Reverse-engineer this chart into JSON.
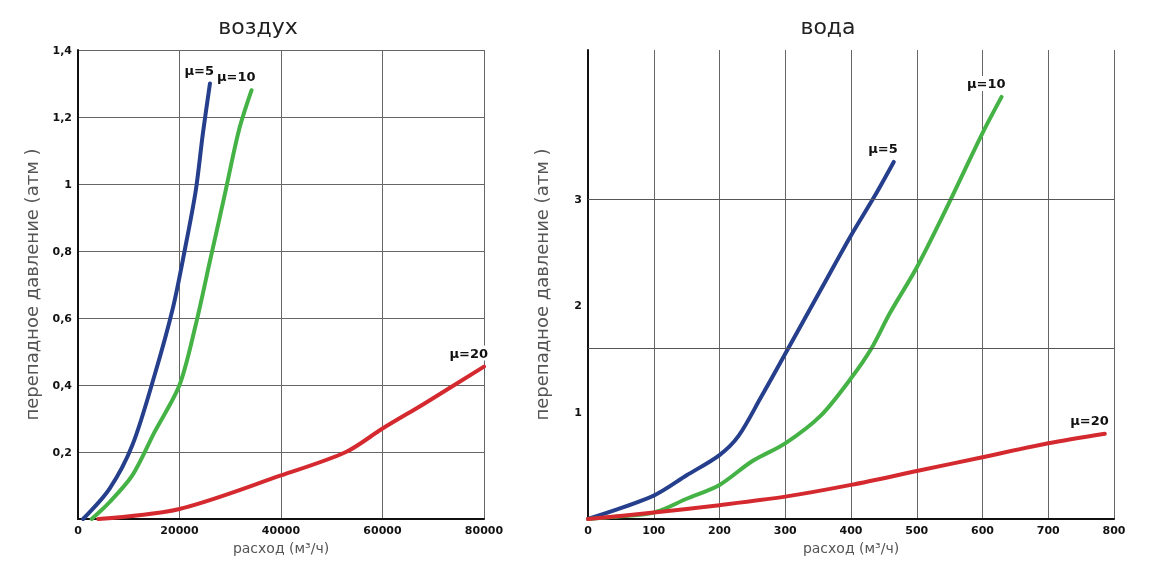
{
  "chart_data": [
    {
      "type": "line",
      "title": "воздух",
      "xlabel": "расход (м³/ч)",
      "ylabel": "перепадное давление (атм )",
      "xlim": [
        0,
        80000
      ],
      "xticks": [
        0,
        20000,
        40000,
        60000,
        80000
      ],
      "ylim": [
        0,
        1.4
      ],
      "yticks": [
        {
          "value": 0,
          "label": null
        },
        {
          "value": 0.2,
          "label": "0,2"
        },
        {
          "value": 0.4,
          "label": "0,4"
        },
        {
          "value": 0.6,
          "label": "0,6"
        },
        {
          "value": 0.8,
          "label": "0,8"
        },
        1,
        {
          "value": 1.2,
          "label": "1,2"
        },
        {
          "value": 1.4,
          "label": "1,4"
        }
      ],
      "grid": true,
      "legend": false,
      "series": [
        {
          "name": "μ=5",
          "color": "#263f8c",
          "x": [
            1000,
            6200,
            10700,
            15100,
            18700,
            21000,
            23200,
            24600,
            26000
          ],
          "values": [
            0,
            0.09,
            0.22,
            0.43,
            0.63,
            0.8,
            0.98,
            1.15,
            1.3
          ]
        },
        {
          "name": "μ=10",
          "color": "#45b245",
          "x": [
            2700,
            6200,
            10700,
            15100,
            20000,
            23200,
            26000,
            28800,
            31700,
            34200
          ],
          "values": [
            0,
            0.05,
            0.13,
            0.26,
            0.4,
            0.58,
            0.77,
            0.96,
            1.16,
            1.28
          ]
        },
        {
          "name": "μ=20",
          "color": "#d42a2f",
          "x": [
            4000,
            20000,
            40000,
            52800,
            60000,
            68300,
            80000
          ],
          "values": [
            0,
            0.03,
            0.13,
            0.2,
            0.27,
            0.345,
            0.455
          ]
        }
      ]
    },
    {
      "type": "line",
      "title": "вода",
      "xlabel": "расход (м³/ч)",
      "ylabel": "перепадное давление (атм )",
      "xlim": [
        0,
        800
      ],
      "xticks": [
        0,
        100,
        200,
        300,
        400,
        500,
        600,
        700,
        800
      ],
      "ylim": [
        0,
        4.4
      ],
      "yticks": [
        {
          "value": 0,
          "label": null
        },
        1,
        2,
        3
      ],
      "grid": "x",
      "legend": false,
      "ref_lines": [
        {
          "axis": "y",
          "value": 3,
          "color": "#555555"
        },
        {
          "axis": "y",
          "value": 1.6,
          "color": "#555555"
        }
      ],
      "series": [
        {
          "name": "μ=5",
          "color": "#263f8c",
          "x": [
            0,
            100,
            150,
            200,
            229,
            262,
            300,
            354,
            400,
            436,
            465
          ],
          "values": [
            0,
            0.22,
            0.41,
            0.6,
            0.78,
            1.13,
            1.55,
            2.15,
            2.66,
            3.03,
            3.35
          ]
        },
        {
          "name": "μ=10",
          "color": "#45b245",
          "x": [
            0,
            39,
            100,
            150,
            200,
            249,
            300,
            354,
            400,
            431,
            459,
            500,
            544,
            600,
            629
          ],
          "values": [
            0,
            0.02,
            0.06,
            0.19,
            0.32,
            0.54,
            0.71,
            0.97,
            1.32,
            1.6,
            1.93,
            2.36,
            2.9,
            3.62,
            3.96
          ]
        },
        {
          "name": "μ=20",
          "color": "#d42a2f",
          "x": [
            0,
            100,
            200,
            300,
            400,
            500,
            600,
            700,
            786
          ],
          "values": [
            0,
            0.06,
            0.13,
            0.21,
            0.32,
            0.45,
            0.58,
            0.71,
            0.8
          ]
        }
      ]
    }
  ]
}
